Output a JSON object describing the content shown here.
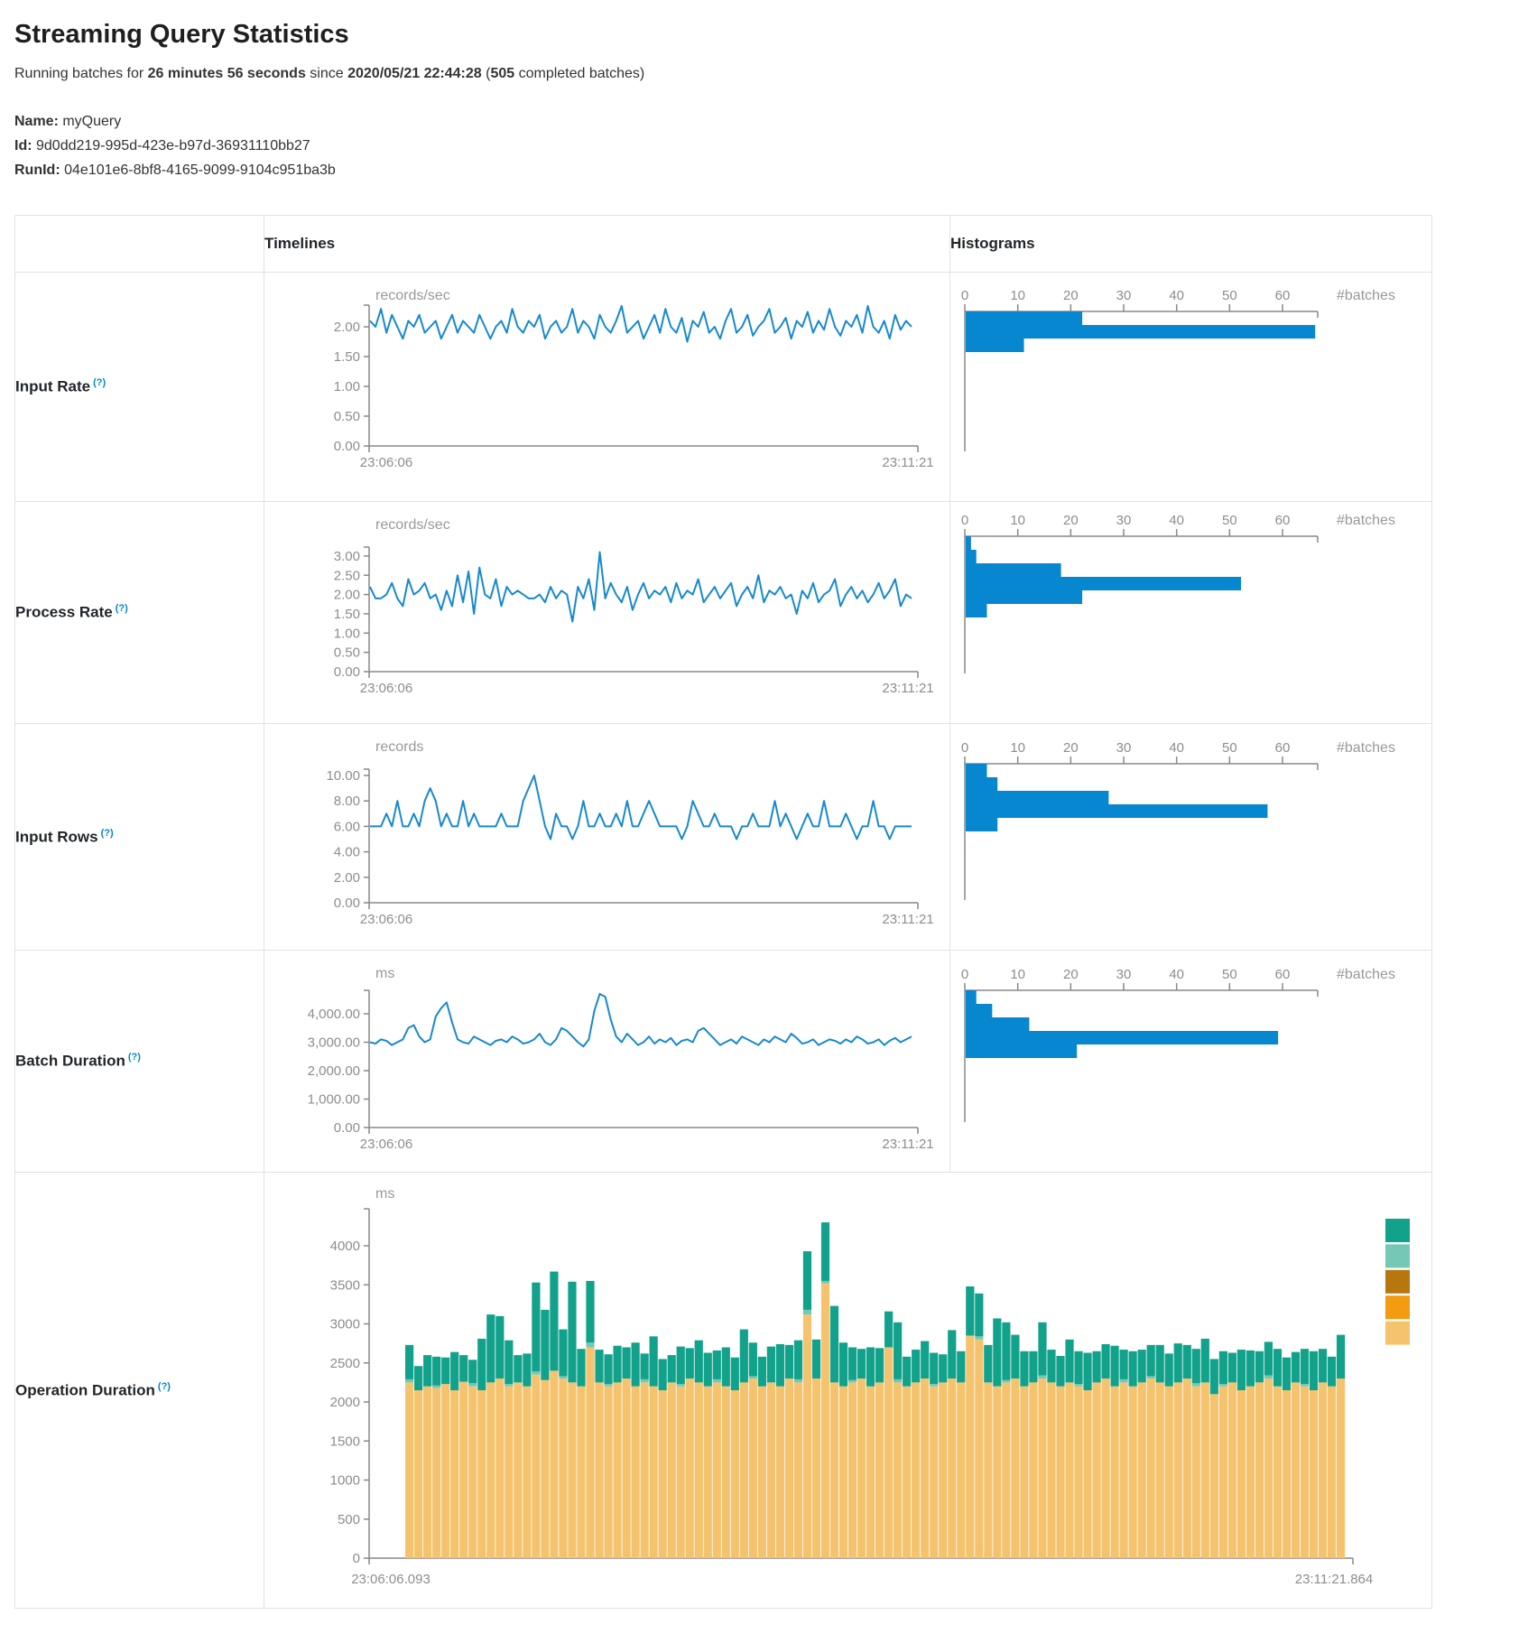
{
  "page": {
    "title": "Streaming Query Statistics",
    "subtitle_parts": [
      {
        "text": "Running batches for ",
        "bold": false
      },
      {
        "text": "26 minutes 56 seconds",
        "bold": true
      },
      {
        "text": " since ",
        "bold": false
      },
      {
        "text": "2020/05/21 22:44:28",
        "bold": true
      },
      {
        "text": " (",
        "bold": false
      },
      {
        "text": "505",
        "bold": true
      },
      {
        "text": " completed batches)",
        "bold": false
      }
    ],
    "meta": [
      {
        "label": "Name:",
        "value": "myQuery"
      },
      {
        "label": "Id:",
        "value": "9d0dd219-995d-423e-b97d-36931110bb27"
      },
      {
        "label": "RunId:",
        "value": "04e101e6-8bf8-4165-9099-9104c951ba3b"
      }
    ]
  },
  "table": {
    "header_timelines": "Timelines",
    "header_histograms": "Histograms"
  },
  "colors": {
    "line_blue": "#1789CE",
    "hist_blue": "#0787D0",
    "axis_gray": "#888888",
    "help_blue": "#0088CC",
    "border": "#DEE2E6"
  },
  "chart_data": [
    {
      "slug": "input-rate",
      "label": "Input Rate",
      "help": "(?)",
      "timeline": {
        "type": "line",
        "unit": "records/sec",
        "x_start": "23:06:06",
        "x_end": "23:11:21",
        "tick_values": [
          2,
          1.5,
          1,
          0.5,
          0
        ],
        "tick_labels": [
          "2.00",
          "1.50",
          "1.00",
          "0.50",
          "0.00"
        ],
        "values": [
          2.1,
          2.0,
          2.3,
          1.9,
          2.2,
          2.0,
          1.8,
          2.1,
          2.0,
          2.2,
          1.9,
          2.0,
          2.1,
          1.8,
          2.0,
          2.2,
          1.9,
          2.1,
          2.0,
          1.9,
          2.2,
          2.0,
          1.8,
          2.0,
          2.1,
          1.9,
          2.3,
          2.0,
          1.9,
          2.1,
          2.0,
          2.2,
          1.8,
          2.0,
          2.1,
          1.9,
          2.0,
          2.3,
          1.9,
          2.1,
          2.0,
          1.8,
          2.2,
          2.0,
          1.9,
          2.1,
          2.35,
          1.9,
          2.0,
          2.1,
          1.8,
          2.0,
          2.2,
          1.9,
          2.3,
          2.0,
          1.9,
          2.15,
          1.75,
          2.1,
          2.0,
          2.25,
          1.9,
          2.0,
          1.8,
          2.1,
          2.3,
          1.9,
          2.0,
          2.2,
          1.85,
          2.0,
          2.1,
          2.3,
          1.9,
          2.0,
          2.15,
          1.8,
          2.1,
          2.0,
          2.25,
          1.9,
          2.1,
          1.95,
          2.3,
          2.0,
          1.85,
          2.1,
          2.0,
          2.2,
          1.9,
          2.35,
          2.0,
          1.9,
          2.1,
          1.8,
          2.2,
          1.95,
          2.1,
          2.0
        ]
      },
      "histogram": {
        "type": "bar",
        "ticks": [
          0,
          10,
          20,
          30,
          40,
          50,
          60
        ],
        "unit_label": "#batches",
        "bars": [
          22,
          66,
          11
        ]
      }
    },
    {
      "slug": "process-rate",
      "label": "Process Rate",
      "help": "(?)",
      "timeline": {
        "type": "line",
        "unit": "records/sec",
        "x_start": "23:06:06",
        "x_end": "23:11:21",
        "tick_values": [
          3,
          2.5,
          2,
          1.5,
          1,
          0.5,
          0
        ],
        "tick_labels": [
          "3.00",
          "2.50",
          "2.00",
          "1.50",
          "1.00",
          "0.50",
          "0.00"
        ],
        "values": [
          2.2,
          1.9,
          1.9,
          2.0,
          2.3,
          1.9,
          1.7,
          2.4,
          2.0,
          2.1,
          2.3,
          1.9,
          2.0,
          1.6,
          2.1,
          1.7,
          2.5,
          1.8,
          2.6,
          1.5,
          2.7,
          2.0,
          1.9,
          2.4,
          1.7,
          2.2,
          2.0,
          2.1,
          2.0,
          1.9,
          1.9,
          2.0,
          1.8,
          2.2,
          1.9,
          2.1,
          2.0,
          1.3,
          2.2,
          1.9,
          2.4,
          1.6,
          3.1,
          1.9,
          2.3,
          2.0,
          1.8,
          2.2,
          1.6,
          2.0,
          2.3,
          1.9,
          2.1,
          2.0,
          2.2,
          1.8,
          2.3,
          1.9,
          2.1,
          2.0,
          2.4,
          1.8,
          2.0,
          2.2,
          1.9,
          2.1,
          2.3,
          1.7,
          2.0,
          2.2,
          1.9,
          2.5,
          1.8,
          2.1,
          2.0,
          2.2,
          1.9,
          2.0,
          1.5,
          2.1,
          1.9,
          2.3,
          1.8,
          2.0,
          2.1,
          2.4,
          1.7,
          2.0,
          2.2,
          1.9,
          2.1,
          1.8,
          2.0,
          2.3,
          1.9,
          2.1,
          2.4,
          1.7,
          2.0,
          1.9
        ]
      },
      "histogram": {
        "type": "bar",
        "ticks": [
          0,
          10,
          20,
          30,
          40,
          50,
          60
        ],
        "unit_label": "#batches",
        "bars": [
          1,
          2,
          18,
          52,
          22,
          4
        ]
      }
    },
    {
      "slug": "input-rows",
      "label": "Input Rows",
      "help": "(?)",
      "timeline": {
        "type": "line",
        "unit": "records",
        "x_start": "23:06:06",
        "x_end": "23:11:21",
        "tick_values": [
          10,
          8,
          6,
          4,
          2,
          0
        ],
        "tick_labels": [
          "10.00",
          "8.00",
          "6.00",
          "4.00",
          "2.00",
          "0.00"
        ],
        "values": [
          6,
          6,
          6,
          7,
          6,
          8,
          6,
          6,
          7,
          6,
          8,
          9,
          8,
          6,
          7,
          6,
          6,
          8,
          6,
          7,
          6,
          6,
          6,
          6,
          7,
          6,
          6,
          6,
          8,
          9,
          10,
          8,
          6,
          5,
          7,
          6,
          6,
          5,
          6,
          8,
          6,
          6,
          7,
          6,
          6,
          7,
          6,
          8,
          6,
          6,
          7,
          8,
          7,
          6,
          6,
          6,
          6,
          5,
          6,
          8,
          7,
          6,
          6,
          7,
          6,
          6,
          6,
          5,
          6,
          6,
          7,
          6,
          6,
          6,
          8,
          6,
          7,
          6,
          5,
          6,
          7,
          6,
          6,
          8,
          6,
          6,
          6,
          7,
          6,
          5,
          6,
          6,
          8,
          6,
          6,
          5,
          6,
          6,
          6,
          6
        ]
      },
      "histogram": {
        "type": "bar",
        "ticks": [
          0,
          10,
          20,
          30,
          40,
          50,
          60
        ],
        "unit_label": "#batches",
        "bars": [
          4,
          6,
          27,
          57,
          6
        ]
      }
    },
    {
      "slug": "batch-duration",
      "label": "Batch Duration",
      "help": "(?)",
      "timeline": {
        "type": "line",
        "unit": "ms",
        "x_start": "23:06:06",
        "x_end": "23:11:21",
        "tick_values": [
          4000,
          3000,
          2000,
          1000,
          0
        ],
        "tick_labels": [
          "4,000.00",
          "3,000.00",
          "2,000.00",
          "1,000.00",
          "0.00"
        ],
        "values": [
          3000,
          2950,
          3100,
          3050,
          2900,
          3000,
          3100,
          3500,
          3600,
          3200,
          3000,
          3100,
          3900,
          4200,
          4400,
          3700,
          3100,
          3000,
          2950,
          3200,
          3100,
          3000,
          2900,
          3050,
          3100,
          3000,
          3200,
          3100,
          2950,
          3000,
          3100,
          3300,
          3000,
          2900,
          3100,
          3500,
          3400,
          3200,
          3000,
          2850,
          3100,
          4100,
          4700,
          4600,
          3800,
          3200,
          3000,
          3300,
          3100,
          2900,
          3000,
          3200,
          2950,
          3100,
          3000,
          3150,
          2900,
          3050,
          3100,
          3000,
          3400,
          3500,
          3300,
          3100,
          2900,
          3000,
          3100,
          2950,
          3200,
          3100,
          3000,
          2900,
          3100,
          3000,
          3200,
          3100,
          3000,
          3300,
          3150,
          2950,
          3000,
          3100,
          2900,
          3000,
          3100,
          3050,
          2950,
          3100,
          3000,
          3200,
          3100,
          2950,
          3000,
          3100,
          2900,
          3050,
          3150,
          3000,
          3100,
          3200
        ]
      },
      "histogram": {
        "type": "bar",
        "ticks": [
          0,
          10,
          20,
          30,
          40,
          50,
          60
        ],
        "unit_label": "#batches",
        "bars": [
          2,
          5,
          12,
          59,
          21
        ]
      }
    }
  ],
  "operation": {
    "slug": "operation-duration",
    "label": "Operation Duration",
    "help": "(?)",
    "type": "stacked-bar",
    "unit": "ms",
    "x_start": "23:06:06.093",
    "x_end": "23:11:21.864",
    "tick_values": [
      4000,
      3500,
      3000,
      2500,
      2000,
      1500,
      1000,
      500,
      0
    ],
    "tick_labels": [
      "4000",
      "3500",
      "3000",
      "2500",
      "2000",
      "1500",
      "1000",
      "500",
      "0"
    ],
    "legend_colors": [
      "#12A28B",
      "#76C8B6",
      "#B8770E",
      "#F39C12",
      "#F5C36D"
    ],
    "stack_colors": {
      "base": "#F5C36D",
      "sliver": "#76C8B6",
      "top": "#12A28B"
    },
    "bars": [
      [
        2250,
        40,
        440
      ],
      [
        2150,
        0,
        310
      ],
      [
        2200,
        0,
        400
      ],
      [
        2180,
        30,
        370
      ],
      [
        2230,
        0,
        340
      ],
      [
        2150,
        0,
        490
      ],
      [
        2260,
        0,
        340
      ],
      [
        2200,
        40,
        300
      ],
      [
        2150,
        0,
        660
      ],
      [
        2250,
        0,
        870
      ],
      [
        2300,
        0,
        800
      ],
      [
        2200,
        30,
        560
      ],
      [
        2250,
        0,
        350
      ],
      [
        2200,
        0,
        420
      ],
      [
        2350,
        40,
        1140
      ],
      [
        2280,
        0,
        900
      ],
      [
        2400,
        0,
        1270
      ],
      [
        2300,
        30,
        600
      ],
      [
        2250,
        0,
        1290
      ],
      [
        2200,
        0,
        480
      ],
      [
        2700,
        60,
        790
      ],
      [
        2250,
        0,
        420
      ],
      [
        2200,
        30,
        380
      ],
      [
        2250,
        0,
        470
      ],
      [
        2300,
        0,
        400
      ],
      [
        2200,
        0,
        560
      ],
      [
        2250,
        40,
        330
      ],
      [
        2200,
        0,
        640
      ],
      [
        2150,
        0,
        400
      ],
      [
        2250,
        0,
        350
      ],
      [
        2200,
        30,
        480
      ],
      [
        2300,
        0,
        390
      ],
      [
        2250,
        0,
        540
      ],
      [
        2200,
        0,
        430
      ],
      [
        2250,
        40,
        370
      ],
      [
        2200,
        0,
        500
      ],
      [
        2150,
        0,
        420
      ],
      [
        2250,
        0,
        680
      ],
      [
        2300,
        30,
        430
      ],
      [
        2200,
        0,
        380
      ],
      [
        2250,
        0,
        460
      ],
      [
        2200,
        0,
        540
      ],
      [
        2300,
        0,
        430
      ],
      [
        2250,
        40,
        500
      ],
      [
        3120,
        60,
        750
      ],
      [
        2300,
        0,
        500
      ],
      [
        3520,
        30,
        750
      ],
      [
        2250,
        0,
        980
      ],
      [
        2200,
        0,
        560
      ],
      [
        2250,
        30,
        420
      ],
      [
        2300,
        0,
        380
      ],
      [
        2200,
        0,
        500
      ],
      [
        2250,
        0,
        440
      ],
      [
        2700,
        0,
        460
      ],
      [
        2250,
        40,
        730
      ],
      [
        2200,
        0,
        380
      ],
      [
        2250,
        0,
        420
      ],
      [
        2300,
        0,
        480
      ],
      [
        2200,
        30,
        400
      ],
      [
        2250,
        0,
        360
      ],
      [
        2300,
        0,
        620
      ],
      [
        2250,
        0,
        400
      ],
      [
        2850,
        0,
        630
      ],
      [
        2800,
        40,
        550
      ],
      [
        2250,
        0,
        480
      ],
      [
        2200,
        0,
        870
      ],
      [
        2250,
        30,
        740
      ],
      [
        2300,
        0,
        560
      ],
      [
        2200,
        0,
        450
      ],
      [
        2250,
        0,
        400
      ],
      [
        2300,
        40,
        680
      ],
      [
        2250,
        0,
        420
      ],
      [
        2200,
        0,
        390
      ],
      [
        2250,
        0,
        550
      ],
      [
        2200,
        30,
        420
      ],
      [
        2150,
        0,
        480
      ],
      [
        2250,
        0,
        400
      ],
      [
        2300,
        0,
        440
      ],
      [
        2200,
        0,
        520
      ],
      [
        2250,
        40,
        380
      ],
      [
        2200,
        0,
        450
      ],
      [
        2250,
        0,
        420
      ],
      [
        2300,
        30,
        400
      ],
      [
        2250,
        0,
        480
      ],
      [
        2200,
        0,
        420
      ],
      [
        2250,
        0,
        500
      ],
      [
        2300,
        0,
        430
      ],
      [
        2200,
        40,
        440
      ],
      [
        2250,
        0,
        560
      ],
      [
        2100,
        0,
        450
      ],
      [
        2200,
        30,
        420
      ],
      [
        2250,
        0,
        380
      ],
      [
        2150,
        0,
        520
      ],
      [
        2200,
        0,
        460
      ],
      [
        2250,
        0,
        400
      ],
      [
        2300,
        40,
        430
      ],
      [
        2200,
        0,
        480
      ],
      [
        2150,
        0,
        420
      ],
      [
        2250,
        0,
        390
      ],
      [
        2200,
        30,
        450
      ],
      [
        2150,
        0,
        500
      ],
      [
        2250,
        0,
        430
      ],
      [
        2200,
        0,
        380
      ],
      [
        2300,
        0,
        560
      ]
    ]
  }
}
